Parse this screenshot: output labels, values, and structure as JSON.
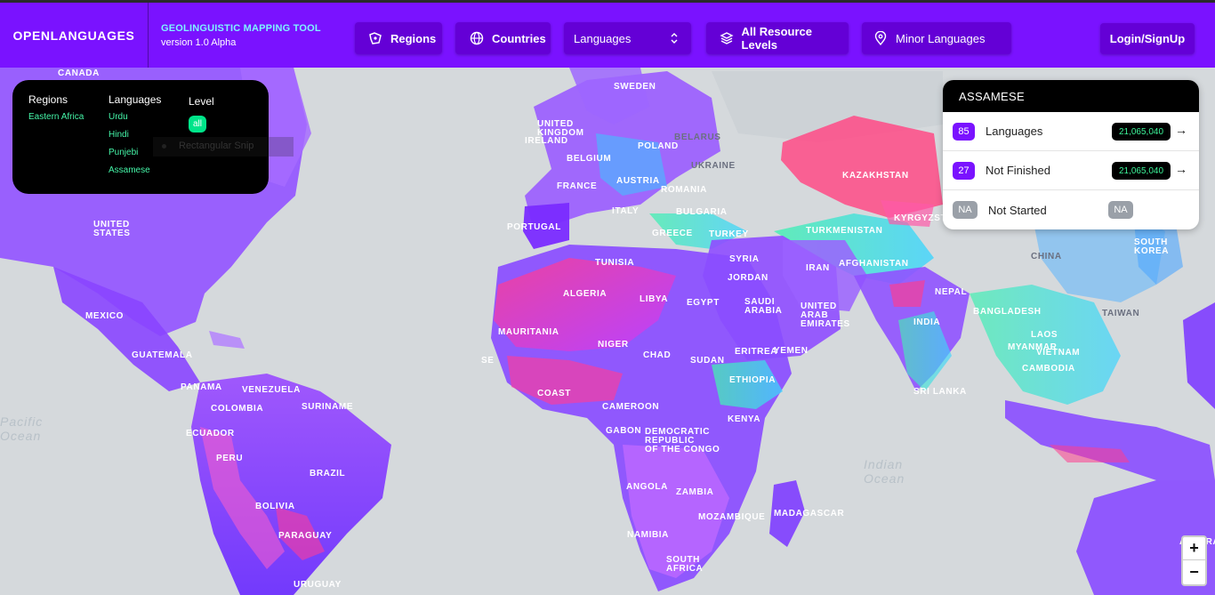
{
  "brand": {
    "name": "OPENLANGUAGES"
  },
  "tool": {
    "title": "GEOLINGUISTIC MAPPING TOOL",
    "version": "version 1.0 Alpha"
  },
  "nav": {
    "regions": "Regions",
    "countries": "Countries",
    "languages_select": "Languages",
    "levels": "All Resource Levels",
    "minor": "Minor Languages",
    "login": "Login/SignUp"
  },
  "filters": {
    "regions_head": "Regions",
    "regions": [
      "Eastern Africa"
    ],
    "languages_head": "Languages",
    "languages": [
      "Urdu",
      "Hindi",
      "Punjebi",
      "Assamese"
    ],
    "level_head": "Level",
    "level_value": "all"
  },
  "snip_tooltip": "Rectangular Snip",
  "language_card": {
    "title": "ASSAMESE",
    "rows": [
      {
        "badge": "85",
        "label": "Languages",
        "population": "21,065,040",
        "arrow": "→"
      },
      {
        "badge": "27",
        "label": "Not Finished",
        "population": "21,065,040",
        "arrow": "→"
      },
      {
        "badge": "NA",
        "label": "Not Started",
        "population": "NA"
      }
    ]
  },
  "map_labels": {
    "canada": "CANADA",
    "united_states": "UNITED\nSTATES",
    "mexico": "MEXICO",
    "guatemala": "GUATEMALA",
    "panama": "PANAMA",
    "venezuela": "VENEZUELA",
    "colombia": "COLOMBIA",
    "ecuador": "ECUADOR",
    "peru": "PERU",
    "brazil": "BRAZIL",
    "bolivia": "BOLIVIA",
    "paraguay": "PARAGUAY",
    "uruguay": "URUGUAY",
    "suriname": "SURINAME",
    "sweden": "SWEDEN",
    "united_kingdom": "UNITED\nKINGDOM",
    "ireland": "IRELAND",
    "belgium": "BELGIUM",
    "poland": "POLAND",
    "belarus": "BELARUS",
    "ukraine": "UKRAINE",
    "france": "FRANCE",
    "austria": "AUSTRIA",
    "romania": "ROMANIA",
    "italy": "ITALY",
    "bulgaria": "BULGARIA",
    "portugal": "PORTUGAL",
    "greece": "GREECE",
    "turkey": "TURKEY",
    "kazakhstan": "KAZAKHSTAN",
    "kyrgyzstan": "KYRGYZSTAN",
    "turkmenistan": "TURKMENISTAN",
    "iran": "IRAN",
    "afghanistan": "AFGHANISTAN",
    "china": "CHINA",
    "south_korea": "SOUTH\nKOREA",
    "taiwan": "TAIWAN",
    "nepal": "NEPAL",
    "bangladesh": "BANGLADESH",
    "india": "INDIA",
    "myanmar": "MYANMAR",
    "laos": "LAOS",
    "vietnam": "VIETNAM",
    "cambodia": "CAMBODIA",
    "sri_lanka": "SRI LANKA",
    "tunisia": "TUNISIA",
    "algeria": "ALGERIA",
    "libya": "LIBYA",
    "egypt": "EGYPT",
    "saudi_arabia": "SAUDI\nARABIA",
    "united_arab_emirates": "UNITED\nARAB\nEMIRATES",
    "yemen": "YEMEN",
    "mauritania": "MAURITANIA",
    "niger": "NIGER",
    "chad": "CHAD",
    "sudan": "SUDAN",
    "eritrea": "ERITREA",
    "ethiopia": "ETHIOPIA",
    "cameroon": "CAMEROON",
    "gabon": "GABON",
    "dr_congo": "DEMOCRATIC\nREPUBLIC\nOF THE CONGO",
    "kenya": "KENYA",
    "angola": "ANGOLA",
    "zambia": "ZAMBIA",
    "namibia": "NAMIBIA",
    "mozambique": "MOZAMBIQUE",
    "madagascar": "MADAGASCAR",
    "south_africa": "SOUTH\nAFRICA",
    "australia": "AUSTRALIA",
    "ivory_coast": "COAST",
    "senegal": "SE",
    "pacific_ocean": "Pacific\nOcean",
    "indian_ocean": "Indian\nOcean",
    "syria": "SYRIA",
    "jordan": "JORDAN"
  },
  "zoom": {
    "in": "+",
    "out": "−"
  }
}
